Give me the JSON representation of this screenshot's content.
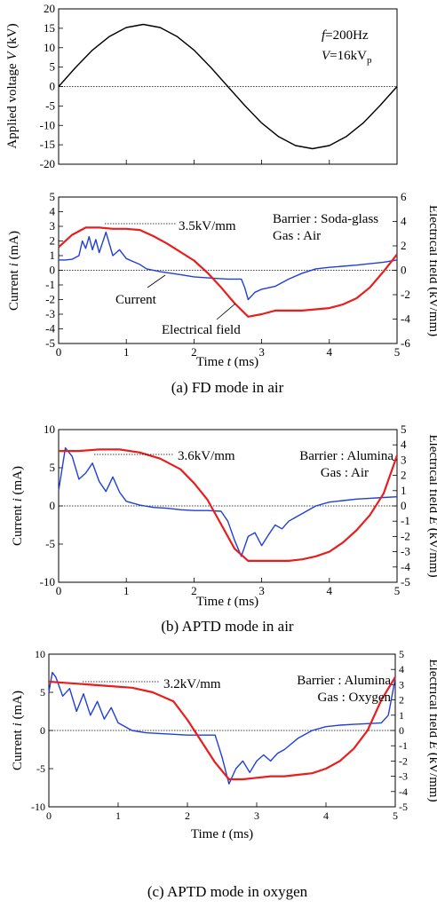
{
  "chart_data": [
    {
      "id": "voltage",
      "type": "line",
      "xlim": [
        0,
        5
      ],
      "ylim": [
        -20,
        20
      ],
      "yticks": [
        -20,
        -15,
        -10,
        -5,
        0,
        5,
        10,
        15,
        20
      ],
      "xticks": [
        0,
        1,
        2,
        3,
        4,
        5
      ],
      "show_x_tick_labels": false,
      "ylabel_text": "Applied voltage",
      "ylabel_var": "V",
      "ylabel_unit": "(kV)",
      "annotations": [
        "f=200Hz",
        "V=16kVp"
      ],
      "series": [
        {
          "color": "#000000",
          "amplitude": 16,
          "frequency_hz": 200,
          "x": [
            0,
            0.25,
            0.5,
            0.75,
            1,
            1.25,
            1.5,
            1.75,
            2,
            2.25,
            2.5,
            2.75,
            3,
            3.25,
            3.5,
            3.75,
            4,
            4.25,
            4.5,
            4.75,
            5
          ],
          "y": [
            0,
            4.9,
            9.4,
            12.9,
            15.2,
            16,
            15.2,
            12.9,
            9.4,
            4.9,
            0,
            -4.9,
            -9.4,
            -12.9,
            -15.2,
            -16,
            -15.2,
            -12.9,
            -9.4,
            -4.9,
            0
          ]
        }
      ]
    },
    {
      "id": "fd_air",
      "type": "line",
      "xlim": [
        0,
        5
      ],
      "ylim": [
        -5,
        5
      ],
      "yticks": [
        -5,
        -4,
        -3,
        -2,
        -1,
        0,
        1,
        2,
        3,
        4,
        5
      ],
      "y2lim": [
        -6,
        6
      ],
      "y2ticks": [
        -6,
        -4,
        -2,
        0,
        2,
        4,
        6
      ],
      "xticks": [
        0,
        1,
        2,
        3,
        4,
        5
      ],
      "xlabel_text": "Time",
      "xlabel_var": "t",
      "xlabel_unit": "(ms)",
      "ylabel_text": "Current",
      "ylabel_var": "i",
      "ylabel_unit": "(mA)",
      "y2label": "Electrical field (kV/mm)",
      "annotations": [
        "3.5kV/mm",
        "Barrier : Soda-glass",
        "Gas : Air",
        "Current",
        "Electrical field"
      ],
      "caption": "(a) FD mode in air",
      "series": [
        {
          "axis": "left",
          "color": "#1f3fd8",
          "x": [
            0,
            0.1,
            0.2,
            0.3,
            0.35,
            0.4,
            0.45,
            0.5,
            0.55,
            0.6,
            0.7,
            0.8,
            0.9,
            1.0,
            1.1,
            1.2,
            1.3,
            1.5,
            1.8,
            2.0,
            2.3,
            2.5,
            2.7,
            2.75,
            2.8,
            2.9,
            3.0,
            3.2,
            3.4,
            3.6,
            3.8,
            4.0,
            4.4,
            4.8,
            5.0
          ],
          "y": [
            0.7,
            0.7,
            0.75,
            1.0,
            2.0,
            1.5,
            2.3,
            1.4,
            2.1,
            1.2,
            2.6,
            1.0,
            1.4,
            0.8,
            0.6,
            0.4,
            0.1,
            -0.1,
            -0.3,
            -0.45,
            -0.55,
            -0.6,
            -0.6,
            -1.2,
            -2.0,
            -1.5,
            -1.3,
            -1.1,
            -0.6,
            -0.2,
            0.1,
            0.2,
            0.35,
            0.55,
            0.7
          ]
        },
        {
          "axis": "right",
          "color": "#e81e1e",
          "x": [
            0,
            0.2,
            0.4,
            0.6,
            0.8,
            1.0,
            1.2,
            1.4,
            1.6,
            1.8,
            2.0,
            2.2,
            2.4,
            2.6,
            2.8,
            3.0,
            3.2,
            3.4,
            3.6,
            3.8,
            4.0,
            4.2,
            4.4,
            4.6,
            4.8,
            5.0
          ],
          "y": [
            1.9,
            2.9,
            3.5,
            3.5,
            3.4,
            3.4,
            3.3,
            2.8,
            2.2,
            1.5,
            0.8,
            -0.2,
            -1.4,
            -2.7,
            -3.8,
            -3.6,
            -3.3,
            -3.3,
            -3.3,
            -3.2,
            -3.1,
            -2.8,
            -2.3,
            -1.4,
            -0.1,
            1.3
          ]
        }
      ]
    },
    {
      "id": "aptd_air",
      "type": "line",
      "xlim": [
        0,
        5
      ],
      "ylim": [
        -10,
        10
      ],
      "yticks": [
        -10,
        -5,
        0,
        5,
        10
      ],
      "y2lim": [
        -5,
        5
      ],
      "y2ticks": [
        -5,
        -4,
        -3,
        -2,
        -1,
        0,
        1,
        2,
        3,
        4,
        5
      ],
      "xticks": [
        0,
        1,
        2,
        3,
        4,
        5
      ],
      "xlabel_text": "Time",
      "xlabel_var": "t",
      "xlabel_unit": "(ms)",
      "ylabel_text": "Current",
      "ylabel_var": "i",
      "ylabel_unit": "(mA)",
      "y2label_text": "Electrical field",
      "y2label_var": "E",
      "y2label_unit": "(kV/mm)",
      "annotations": [
        "3.6kV/mm",
        "Barrier : Alumina",
        "Gas : Air"
      ],
      "caption": "(b) APTD mode in air",
      "series": [
        {
          "axis": "left",
          "color": "#1f3fd8",
          "x": [
            0,
            0.1,
            0.2,
            0.3,
            0.4,
            0.5,
            0.6,
            0.7,
            0.8,
            0.9,
            1.0,
            1.2,
            1.4,
            1.6,
            1.8,
            2.0,
            2.2,
            2.4,
            2.5,
            2.6,
            2.7,
            2.8,
            2.9,
            3.0,
            3.1,
            3.2,
            3.3,
            3.4,
            3.5,
            3.6,
            3.8,
            4.0,
            4.2,
            4.4,
            4.6,
            4.8,
            5.0
          ],
          "y": [
            2.0,
            7.6,
            6.5,
            3.5,
            4.3,
            5.6,
            3.2,
            1.9,
            3.8,
            1.8,
            0.6,
            0.1,
            -0.2,
            -0.3,
            -0.5,
            -0.6,
            -0.6,
            -0.7,
            -2.0,
            -4.5,
            -6.6,
            -4.0,
            -3.5,
            -5.2,
            -3.8,
            -2.5,
            -3.0,
            -2.0,
            -1.5,
            -1.0,
            0.0,
            0.5,
            0.7,
            0.9,
            1.0,
            1.1,
            1.2
          ]
        },
        {
          "axis": "right",
          "color": "#e81e1e",
          "x": [
            0,
            0.3,
            0.6,
            0.9,
            1.2,
            1.5,
            1.8,
            2.0,
            2.2,
            2.4,
            2.6,
            2.8,
            3.0,
            3.2,
            3.4,
            3.6,
            3.8,
            4.0,
            4.2,
            4.4,
            4.6,
            4.8,
            5.0
          ],
          "y": [
            3.6,
            3.6,
            3.7,
            3.7,
            3.5,
            3.1,
            2.4,
            1.5,
            0.4,
            -1.2,
            -2.8,
            -3.6,
            -3.6,
            -3.6,
            -3.6,
            -3.5,
            -3.3,
            -3.0,
            -2.4,
            -1.6,
            -0.6,
            0.8,
            3.3
          ]
        }
      ]
    },
    {
      "id": "aptd_oxygen",
      "type": "line",
      "xlim": [
        0,
        5
      ],
      "ylim": [
        -10,
        10
      ],
      "yticks": [
        -10,
        -5,
        0,
        5,
        10
      ],
      "y2lim": [
        -5,
        5
      ],
      "y2ticks": [
        -5,
        -4,
        -3,
        -2,
        -1,
        0,
        1,
        2,
        3,
        4,
        5
      ],
      "xticks": [
        0,
        1,
        2,
        3,
        4,
        5
      ],
      "xlabel_text": "Time",
      "xlabel_var": "t",
      "xlabel_unit": "(ms)",
      "ylabel_text": "Current",
      "ylabel_var": "i",
      "ylabel_unit": "(mA)",
      "y2label_text": "Electrical field",
      "y2label_var": "E",
      "y2label_unit": "(kV/mm)",
      "annotations": [
        "3.2kV/mm",
        "Barrier : Alumina",
        "Gas : Oxygen"
      ],
      "caption": "(c) APTD mode in oxygen",
      "series": [
        {
          "axis": "left",
          "color": "#1f3fd8",
          "x": [
            0,
            0.05,
            0.1,
            0.2,
            0.3,
            0.4,
            0.5,
            0.6,
            0.7,
            0.8,
            0.9,
            1.0,
            1.2,
            1.4,
            1.6,
            1.8,
            2.0,
            2.2,
            2.4,
            2.5,
            2.6,
            2.7,
            2.8,
            2.9,
            3.0,
            3.1,
            3.2,
            3.3,
            3.4,
            3.6,
            3.8,
            4.0,
            4.2,
            4.4,
            4.6,
            4.8,
            4.9,
            5.0
          ],
          "y": [
            5.0,
            7.6,
            7.0,
            4.5,
            5.5,
            2.5,
            4.8,
            2.0,
            3.8,
            1.5,
            3.0,
            1.0,
            0.0,
            -0.3,
            -0.4,
            -0.5,
            -0.6,
            -0.6,
            -0.6,
            -3.5,
            -7.0,
            -5.0,
            -4.0,
            -5.5,
            -4.0,
            -3.2,
            -4.0,
            -3.0,
            -2.5,
            -1.0,
            0.0,
            0.5,
            0.7,
            0.8,
            0.9,
            1.0,
            2.0,
            6.8
          ]
        },
        {
          "axis": "right",
          "color": "#e81e1e",
          "x": [
            0,
            0.3,
            0.6,
            0.9,
            1.2,
            1.5,
            1.8,
            2.0,
            2.2,
            2.4,
            2.6,
            2.8,
            3.0,
            3.2,
            3.4,
            3.6,
            3.8,
            4.0,
            4.2,
            4.4,
            4.6,
            4.8,
            5.0
          ],
          "y": [
            3.2,
            3.1,
            3.0,
            2.9,
            2.8,
            2.5,
            1.9,
            0.7,
            -0.7,
            -2.1,
            -3.2,
            -3.2,
            -3.1,
            -3.0,
            -3.0,
            -2.9,
            -2.8,
            -2.5,
            -2.0,
            -1.2,
            0.0,
            2.0,
            3.5
          ]
        }
      ]
    }
  ]
}
